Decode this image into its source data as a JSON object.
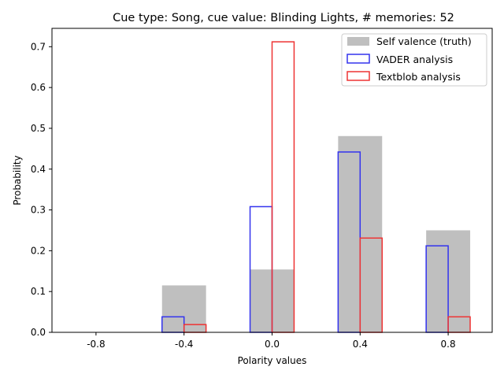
{
  "chart_data": {
    "type": "bar",
    "title": "Cue type: Song, cue value: Blinding Lights, # memories: 52",
    "xlabel": "Polarity values",
    "ylabel": "Probability",
    "x_categories": [
      -0.8,
      -0.4,
      0.0,
      0.4,
      0.8
    ],
    "x_tick_labels": [
      "-0.8",
      "-0.4",
      "0.0",
      "0.4",
      "0.8"
    ],
    "y_ticks": [
      0.0,
      0.1,
      0.2,
      0.3,
      0.4,
      0.5,
      0.6,
      0.7
    ],
    "y_tick_labels": [
      "0.0",
      "0.1",
      "0.2",
      "0.3",
      "0.4",
      "0.5",
      "0.6",
      "0.7"
    ],
    "xlim": [
      -1.0,
      1.0
    ],
    "ylim": [
      0.0,
      0.745
    ],
    "legend_position": "top-right",
    "series": [
      {
        "name": "Self valence (truth)",
        "style": "filled",
        "color": "#bfbfbf",
        "values": [
          0.0,
          0.115,
          0.154,
          0.481,
          0.25
        ]
      },
      {
        "name": "VADER analysis",
        "style": "outline",
        "color": "#3333ee",
        "values": [
          0.0,
          0.038,
          0.308,
          0.442,
          0.212
        ]
      },
      {
        "name": "Textblob analysis",
        "style": "outline",
        "color": "#ee3333",
        "values": [
          0.0,
          0.019,
          0.712,
          0.231,
          0.038
        ]
      }
    ]
  }
}
